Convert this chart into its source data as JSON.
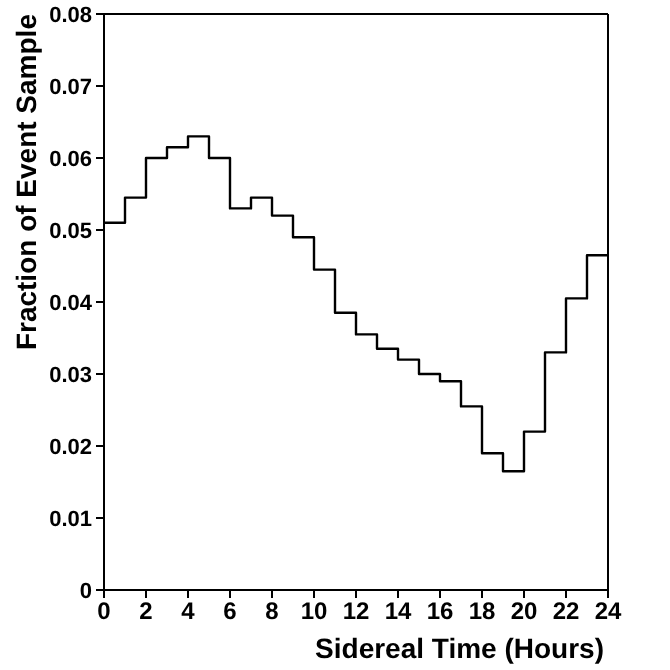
{
  "chart_data": {
    "type": "histogram",
    "xlabel": "Sidereal Time (Hours)",
    "ylabel": "Fraction of Event Sample",
    "bins": [
      0,
      1,
      2,
      3,
      4,
      5,
      6,
      7,
      8,
      9,
      10,
      11,
      12,
      13,
      14,
      15,
      16,
      17,
      18,
      19,
      20,
      21,
      22,
      23,
      24
    ],
    "values": [
      0.051,
      0.0545,
      0.06,
      0.0615,
      0.063,
      0.06,
      0.053,
      0.0545,
      0.052,
      0.049,
      0.0445,
      0.0385,
      0.0355,
      0.0335,
      0.032,
      0.03,
      0.029,
      0.0255,
      0.019,
      0.0165,
      0.022,
      0.033,
      0.0405,
      0.0465
    ],
    "color": "#000000",
    "xlim": [
      0,
      24
    ],
    "xticks": [
      0,
      2,
      4,
      6,
      8,
      10,
      12,
      14,
      16,
      18,
      20,
      22,
      24
    ],
    "ylim": [
      0,
      0.08
    ],
    "yticks": [
      0,
      0.01,
      0.02,
      0.03,
      0.04,
      0.05,
      0.06,
      0.07,
      0.08
    ],
    "grid": false
  }
}
